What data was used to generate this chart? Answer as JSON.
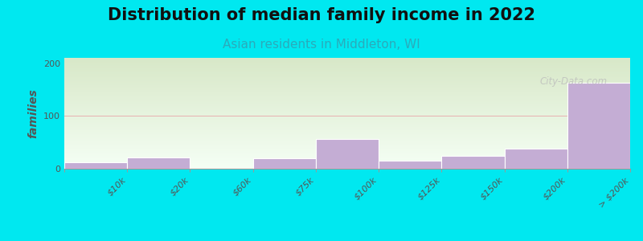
{
  "title": "Distribution of median family income in 2022",
  "subtitle": "Asian residents in Middleton, WI",
  "ylabel": "families",
  "categories": [
    "$10k",
    "$20k",
    "$60k",
    "$75k",
    "$100k",
    "$125k",
    "$150k",
    "$200k",
    "> $200k"
  ],
  "values": [
    12,
    22,
    0,
    20,
    57,
    15,
    25,
    38,
    163
  ],
  "bar_color": "#c4add4",
  "bar_edgecolor": "#c4add4",
  "background_color": "#00e8f0",
  "plot_bg_color_top": "#d8e8c8",
  "plot_bg_color_bottom": "#f5fff5",
  "ylim": [
    0,
    210
  ],
  "yticks": [
    0,
    100,
    200
  ],
  "grid_line_color": "#e8b0b0",
  "title_fontsize": 15,
  "subtitle_fontsize": 11,
  "subtitle_color": "#2aabbb",
  "ylabel_fontsize": 10,
  "tick_label_fontsize": 8,
  "watermark": "City-Data.com"
}
